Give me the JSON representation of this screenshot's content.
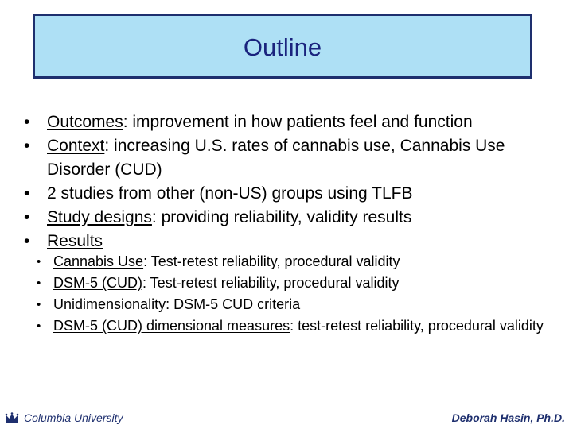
{
  "slide": {
    "title": "Outline",
    "bullets": [
      {
        "term": "Outcomes",
        "rest": ": improvement in how patients feel and function"
      },
      {
        "term": "Context",
        "rest": ": increasing U.S. rates of cannabis use, Cannabis Use Disorder (CUD)"
      },
      {
        "term": "",
        "rest": "2 studies from other (non-US) groups using TLFB"
      },
      {
        "term": "Study designs",
        "rest": ": providing reliability, validity results"
      },
      {
        "term": "Results",
        "rest": ""
      }
    ],
    "sub_bullets": [
      {
        "term": "Cannabis Use",
        "rest": ": Test-retest reliability, procedural validity"
      },
      {
        "term": "DSM-5 (CUD)",
        "rest": ": Test-retest reliability, procedural validity"
      },
      {
        "term": "Unidimensionality",
        "rest": ": DSM-5 CUD criteria"
      },
      {
        "term": "DSM-5 (CUD) dimensional measures",
        "rest": ": test-retest reliability, procedural validity"
      }
    ]
  },
  "footer": {
    "left_logo_icon": "columbia-crown-icon",
    "left_text": "Columbia University",
    "right_text": "Deborah Hasin, Ph.D."
  },
  "colors": {
    "title_bg": "#aee0f5",
    "title_border": "#1e2f6e",
    "title_text": "#1a237e",
    "footer_text": "#1e2f6e"
  }
}
